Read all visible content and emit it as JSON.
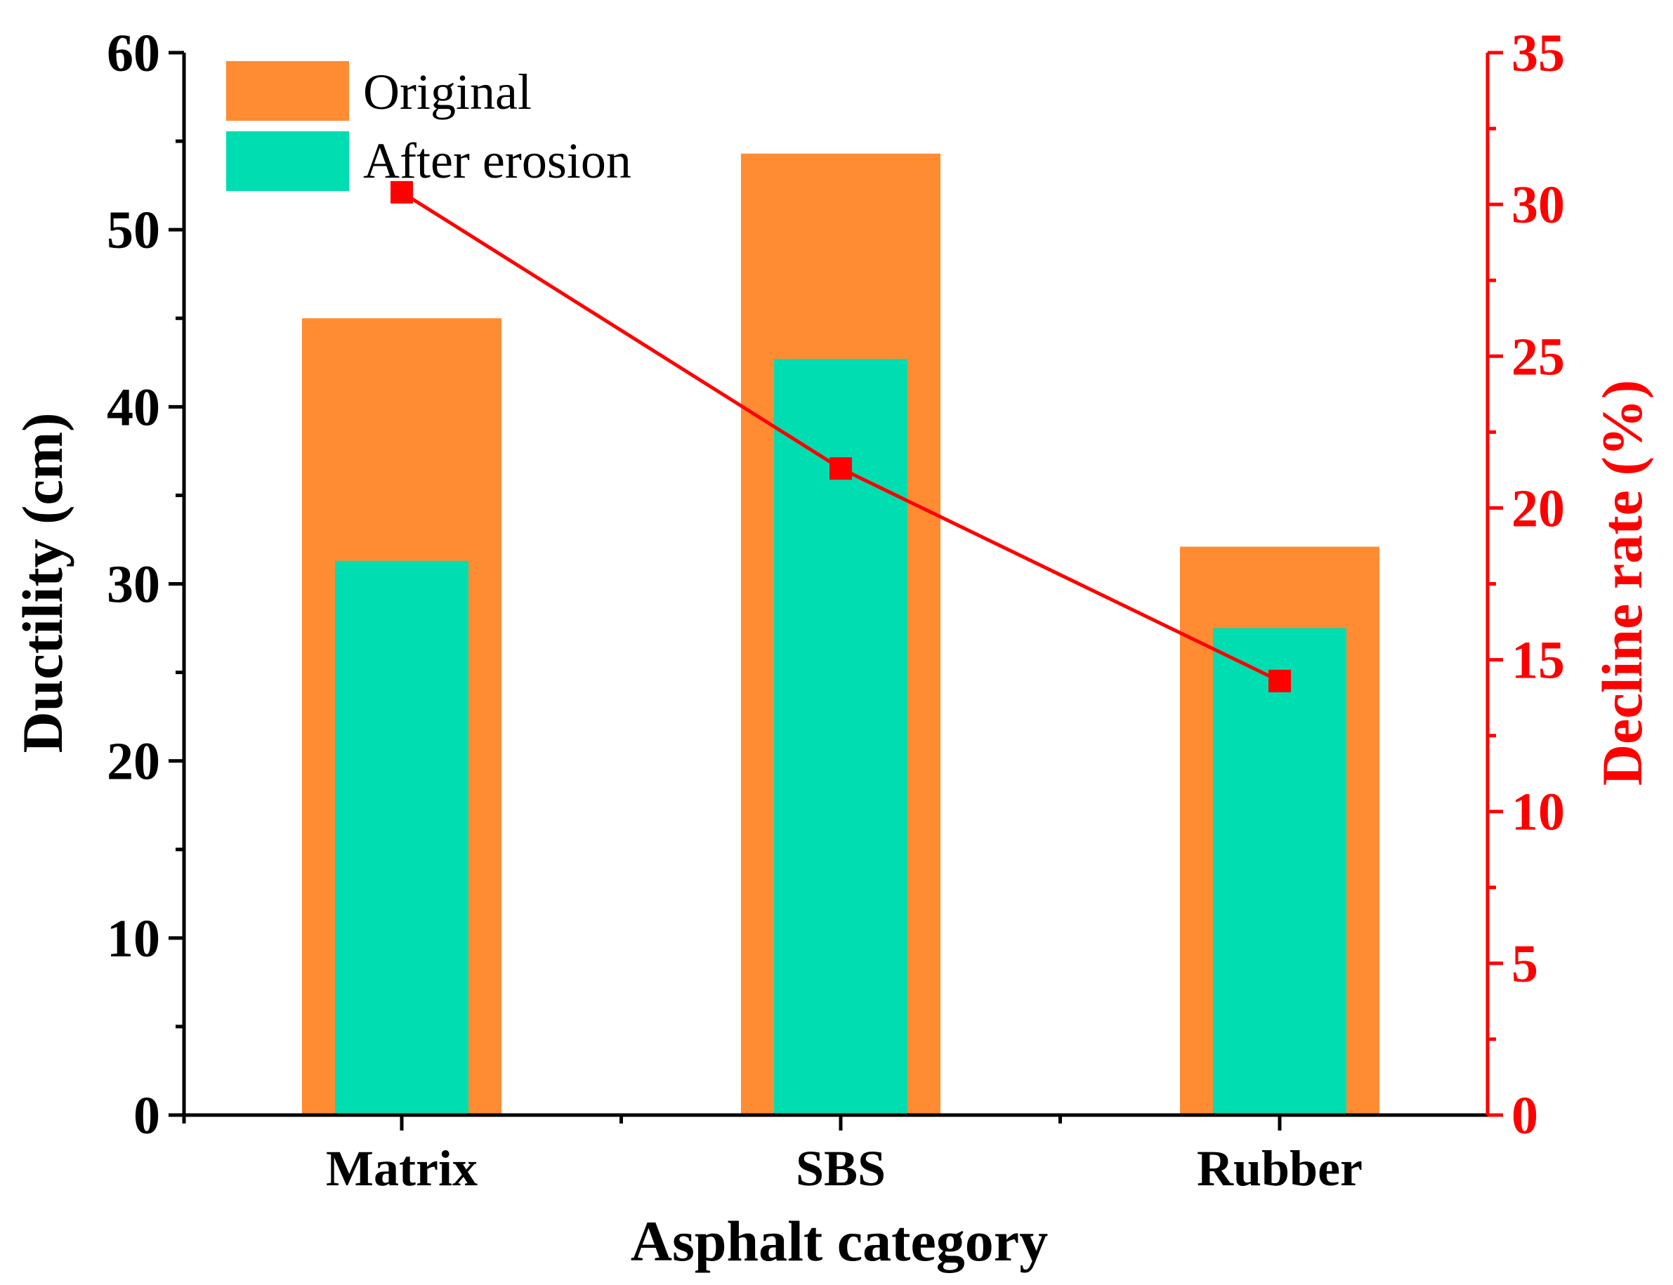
{
  "chart_data": {
    "type": "bar",
    "categories": [
      "Matrix",
      "SBS",
      "Rubber"
    ],
    "xlabel": "Asphalt category",
    "ylabel": "Ductility (cm)",
    "y2label": "Decline rate (%)",
    "ylim": [
      0,
      60
    ],
    "y2lim": [
      0,
      35
    ],
    "yticks": [
      "0",
      "10",
      "20",
      "30",
      "40",
      "50",
      "60"
    ],
    "y2ticks": [
      "0",
      "5",
      "10",
      "15",
      "20",
      "25",
      "30",
      "35"
    ],
    "series": [
      {
        "name": "Original",
        "axis": "left",
        "kind": "bar",
        "color": "#FF8C33",
        "values": [
          45.0,
          54.3,
          32.1
        ]
      },
      {
        "name": "After erosion",
        "axis": "left",
        "kind": "bar",
        "color": "#00DDB0",
        "values": [
          31.3,
          42.7,
          27.5
        ]
      },
      {
        "axis": "right",
        "kind": "line",
        "color": "#FF0000",
        "values": [
          30.4,
          21.3,
          14.3
        ]
      }
    ],
    "legend_position": "top-left",
    "grid": false
  }
}
